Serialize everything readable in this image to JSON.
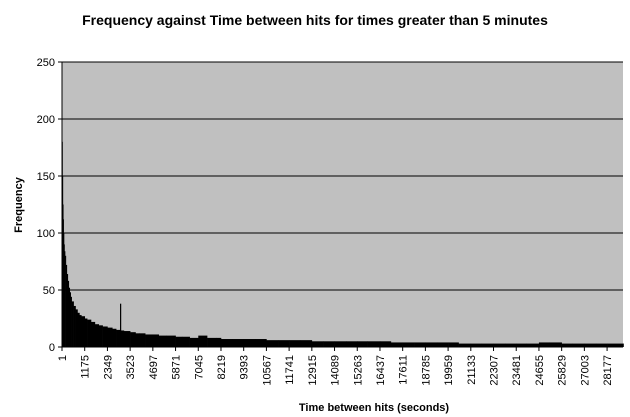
{
  "chart_data": {
    "type": "bar",
    "title": "Frequency against Time between hits for times greater than 5 minutes",
    "xlabel": "Time between hits (seconds)",
    "ylabel": "Frequency",
    "ylim": [
      0,
      250
    ],
    "yticks": [
      0,
      50,
      100,
      150,
      200,
      250
    ],
    "xlim": [
      1,
      29000
    ],
    "xticks": [
      1,
      1175,
      2349,
      3523,
      4697,
      5871,
      7045,
      8219,
      9393,
      10567,
      11741,
      12915,
      14089,
      15263,
      16437,
      17611,
      18785,
      19959,
      21133,
      22307,
      23481,
      24655,
      25829,
      27003,
      28177
    ],
    "grid": true,
    "legend": "none",
    "colors": {
      "plot_area": "#c0c0c0",
      "bars": "#000000",
      "gridlines": "#000000"
    },
    "series": [
      {
        "x": [
          1,
          20,
          40,
          60,
          80,
          100,
          130,
          160,
          200,
          250,
          300,
          350,
          400,
          450,
          500,
          600,
          700,
          800,
          900,
          1000,
          1175,
          1300,
          1500,
          1700,
          1900,
          2100,
          2349,
          2600,
          2800,
          3000,
          3200,
          3523,
          3800,
          4000,
          4300,
          4697,
          5000,
          5400,
          5871,
          6200,
          6600,
          7045,
          7500,
          8000,
          8219,
          8800,
          9393,
          10000,
          10567,
          11200,
          11741,
          12300,
          12915,
          13500,
          14089,
          14700,
          15263,
          15800,
          16437,
          17000,
          17611,
          18200,
          18785,
          19400,
          19959,
          20500,
          21133,
          21700,
          22307,
          22900,
          23481,
          24000,
          24655,
          25200,
          25829,
          26400,
          27003,
          27600,
          28177,
          29000
        ],
        "values": [
          180,
          150,
          125,
          112,
          100,
          90,
          84,
          80,
          72,
          64,
          58,
          52,
          48,
          44,
          40,
          36,
          33,
          30,
          28,
          27,
          25,
          24,
          22,
          20,
          19,
          18,
          17,
          16,
          15,
          38,
          14,
          13,
          12,
          12,
          11,
          11,
          10,
          10,
          9,
          9,
          8,
          10,
          8,
          8,
          7,
          7,
          7,
          7,
          6,
          6,
          6,
          6,
          5,
          5,
          5,
          5,
          5,
          5,
          5,
          4,
          4,
          4,
          4,
          4,
          4,
          3,
          3,
          3,
          3,
          3,
          3,
          3,
          4,
          4,
          3,
          3,
          3,
          3,
          3,
          3
        ]
      }
    ]
  }
}
